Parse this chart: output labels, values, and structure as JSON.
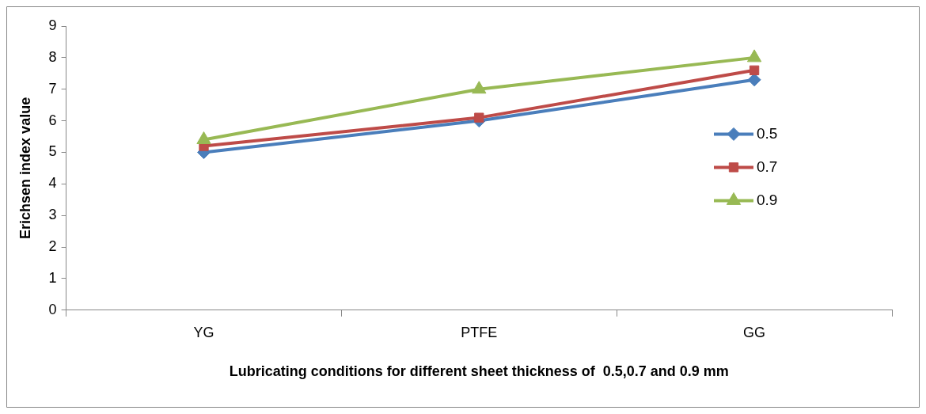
{
  "chart_data": {
    "type": "line",
    "xlabel": "Lubricating conditions for different sheet thickness of  0.5,0.7 and 0.9 mm",
    "ylabel": "Erichsen index value",
    "categories": [
      "YG",
      "PTFE",
      "GG"
    ],
    "series": [
      {
        "name": "0.5",
        "color": "#4a7ebb",
        "values": [
          5.0,
          6.0,
          7.3
        ],
        "marker": "diamond"
      },
      {
        "name": "0.7",
        "color": "#be4b48",
        "values": [
          5.2,
          6.1,
          7.6
        ],
        "marker": "square"
      },
      {
        "name": "0.9",
        "color": "#98b954",
        "values": [
          5.4,
          7.0,
          8.0
        ],
        "marker": "triangle"
      }
    ],
    "ylim": [
      0,
      9
    ],
    "yticks": [
      0,
      1,
      2,
      3,
      4,
      5,
      6,
      7,
      8,
      9
    ],
    "grid": false,
    "legend": "right",
    "line_style": "solid"
  }
}
